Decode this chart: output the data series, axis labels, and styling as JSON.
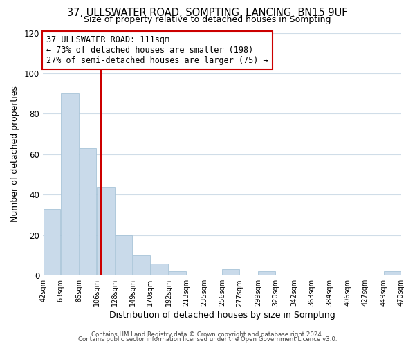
{
  "title": "37, ULLSWATER ROAD, SOMPTING, LANCING, BN15 9UF",
  "subtitle": "Size of property relative to detached houses in Sompting",
  "xlabel": "Distribution of detached houses by size in Sompting",
  "ylabel": "Number of detached properties",
  "bar_edges": [
    42,
    63,
    85,
    106,
    128,
    149,
    170,
    192,
    213,
    235,
    256,
    277,
    299,
    320,
    342,
    363,
    384,
    406,
    427,
    449,
    470
  ],
  "bar_heights": [
    33,
    90,
    63,
    44,
    20,
    10,
    6,
    2,
    0,
    0,
    3,
    0,
    2,
    0,
    0,
    0,
    0,
    0,
    0,
    2
  ],
  "bar_color": "#c9daea",
  "bar_edge_color": "#a8c4d8",
  "vline_x": 111,
  "vline_color": "#cc0000",
  "annotation_line1": "37 ULLSWATER ROAD: 111sqm",
  "annotation_line2": "← 73% of detached houses are smaller (198)",
  "annotation_line3": "27% of semi-detached houses are larger (75) →",
  "ylim": [
    0,
    120
  ],
  "yticks": [
    0,
    20,
    40,
    60,
    80,
    100,
    120
  ],
  "xlim": [
    42,
    470
  ],
  "tick_labels": [
    "42sqm",
    "63sqm",
    "85sqm",
    "106sqm",
    "128sqm",
    "149sqm",
    "170sqm",
    "192sqm",
    "213sqm",
    "235sqm",
    "256sqm",
    "277sqm",
    "299sqm",
    "320sqm",
    "342sqm",
    "363sqm",
    "384sqm",
    "406sqm",
    "427sqm",
    "449sqm",
    "470sqm"
  ],
  "footer_line1": "Contains HM Land Registry data © Crown copyright and database right 2024.",
  "footer_line2": "Contains public sector information licensed under the Open Government Licence v3.0.",
  "background_color": "#ffffff",
  "grid_color": "#d0dde8",
  "ann_box_edgecolor": "#cc0000",
  "title_fontsize": 10.5,
  "subtitle_fontsize": 9
}
